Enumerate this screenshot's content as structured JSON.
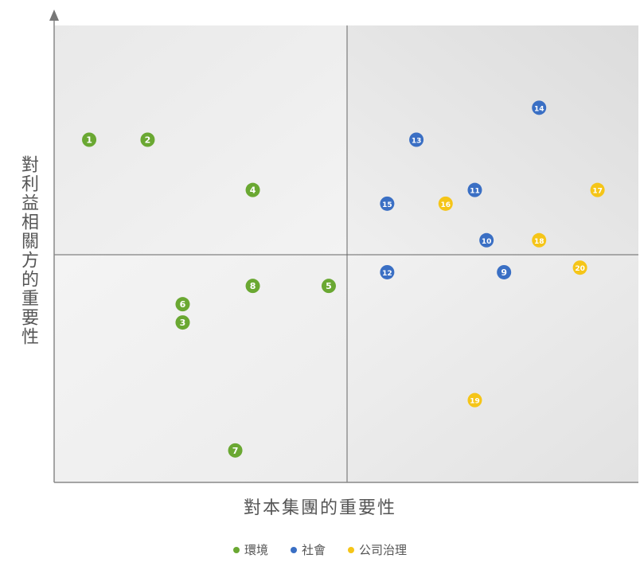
{
  "chart_data": {
    "type": "scatter",
    "title": "",
    "xlabel": "對本集團的重要性",
    "ylabel": "對利益相關方的重要性",
    "xlim": [
      0,
      100
    ],
    "ylim": [
      0,
      100
    ],
    "grid": false,
    "legend_position": "bottom-center",
    "quadrant_dividers": {
      "x": 50,
      "y": 50
    },
    "series": [
      {
        "name": "環境",
        "color": "#6aa832",
        "points": [
          {
            "label": "1",
            "x": 6,
            "y": 75
          },
          {
            "label": "2",
            "x": 16,
            "y": 75
          },
          {
            "label": "3",
            "x": 22,
            "y": 35
          },
          {
            "label": "4",
            "x": 34,
            "y": 64
          },
          {
            "label": "5",
            "x": 47,
            "y": 43
          },
          {
            "label": "6",
            "x": 22,
            "y": 39
          },
          {
            "label": "7",
            "x": 31,
            "y": 7
          },
          {
            "label": "8",
            "x": 34,
            "y": 43
          }
        ]
      },
      {
        "name": "社會",
        "color": "#3a6fc4",
        "points": [
          {
            "label": "9",
            "x": 77,
            "y": 46
          },
          {
            "label": "10",
            "x": 74,
            "y": 53
          },
          {
            "label": "11",
            "x": 72,
            "y": 64
          },
          {
            "label": "12",
            "x": 57,
            "y": 46
          },
          {
            "label": "13",
            "x": 62,
            "y": 75
          },
          {
            "label": "14",
            "x": 83,
            "y": 82
          },
          {
            "label": "15",
            "x": 57,
            "y": 61
          }
        ]
      },
      {
        "name": "公司治理",
        "color": "#f5c518",
        "points": [
          {
            "label": "16",
            "x": 67,
            "y": 61
          },
          {
            "label": "17",
            "x": 93,
            "y": 64
          },
          {
            "label": "18",
            "x": 83,
            "y": 53
          },
          {
            "label": "19",
            "x": 72,
            "y": 18
          },
          {
            "label": "20",
            "x": 90,
            "y": 47
          }
        ]
      }
    ]
  }
}
